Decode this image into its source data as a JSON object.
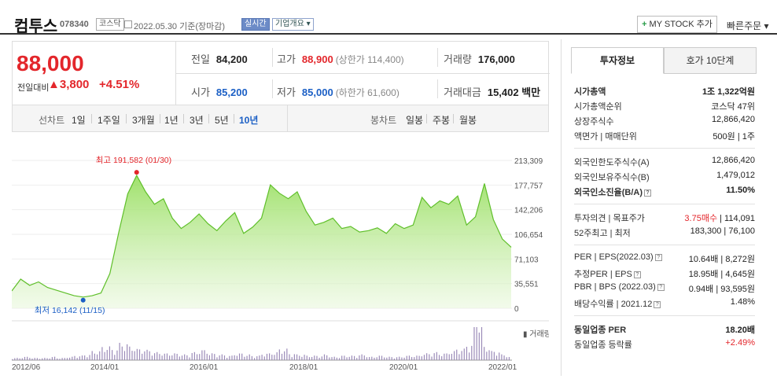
{
  "header": {
    "name": "컴투스",
    "code": "078340",
    "market": "코스닥",
    "date": "2022.05.30 기준(장마감)",
    "realtime": "실시간",
    "company_info": "기업개요 ▾",
    "mystock": "MY STOCK 추가",
    "quick_order": "빠른주문 ▾"
  },
  "price": {
    "current": "88,000",
    "prev_label": "전일대비",
    "change": "▲3,800",
    "change_pct": "+4.51%",
    "stats": {
      "prev_close_label": "전일",
      "prev_close": "84,200",
      "high_label": "고가",
      "high": "88,900",
      "upper_limit": "(상한가 114,400)",
      "volume_label": "거래량",
      "volume": "176,000",
      "open_label": "시가",
      "open": "85,200",
      "low_label": "저가",
      "low": "85,000",
      "lower_limit": "(하한가 61,600)",
      "amount_label": "거래대금",
      "amount": "15,402 백만"
    }
  },
  "tabs": {
    "line_chart": "선차트",
    "periods": [
      "1일",
      "1주일",
      "3개월",
      "1년",
      "3년",
      "5년",
      "10년"
    ],
    "selected_period": "10년",
    "candle_chart": "봉차트",
    "candles": [
      "일봉",
      "주봉",
      "월봉"
    ]
  },
  "chart_data": {
    "type": "area",
    "y_ticks": [
      "213,309",
      "177,757",
      "142,206",
      "106,654",
      "71,103",
      "35,551",
      "0"
    ],
    "x_ticks": [
      "2012/06",
      "2014/01",
      "2016/01",
      "2018/01",
      "2020/01",
      "2022/01"
    ],
    "max_label": "최고 191,582 (01/30)",
    "min_label": "최저 16,142 (11/15)",
    "volume_legend": "거래량",
    "series": [
      {
        "values": [
          25000,
          42000,
          33000,
          38000,
          30000,
          26000,
          22000,
          18000,
          16142,
          18000,
          22000,
          50000,
          110000,
          165000,
          191582,
          168000,
          150000,
          158000,
          130000,
          115000,
          124000,
          136000,
          122000,
          112000,
          126000,
          138000,
          108000,
          117000,
          130000,
          178000,
          166000,
          158000,
          168000,
          140000,
          120000,
          124000,
          130000,
          115000,
          118000,
          110000,
          112000,
          116000,
          108000,
          122000,
          115000,
          120000,
          160000,
          145000,
          155000,
          150000,
          162000,
          120000,
          132000,
          180000,
          128000,
          100000,
          88000
        ]
      }
    ],
    "volume": [
      2,
      3,
      2,
      2,
      3,
      2,
      3,
      4,
      5,
      8,
      12,
      10,
      15,
      12,
      10,
      9,
      7,
      6,
      6,
      5,
      7,
      9,
      6,
      5,
      4,
      6,
      5,
      4,
      6,
      7,
      10,
      6,
      5,
      4,
      4,
      5,
      3,
      4,
      4,
      5,
      3,
      4,
      3,
      3,
      4,
      4,
      6,
      7,
      6,
      8,
      10,
      14,
      40,
      12,
      8,
      5,
      3
    ]
  },
  "panel": {
    "tab_info": "투자정보",
    "tab_orderbook": "호가 10단계",
    "rows1": [
      {
        "l": "시가총액",
        "r": "1조 1,322억원",
        "bold": true
      },
      {
        "l": "시가총액순위",
        "r": "코스닥 47위"
      },
      {
        "l": "상장주식수",
        "r": "12,866,420"
      },
      {
        "l": "액면가 | 매매단위",
        "r": "500원 | 1주"
      }
    ],
    "rows2": [
      {
        "l": "외국인한도주식수(A)",
        "r": "12,866,420"
      },
      {
        "l": "외국인보유주식수(B)",
        "r": "1,479,012"
      },
      {
        "l": "외국인소진율(B/A)",
        "r": "11.50%",
        "bold": true
      }
    ],
    "rows3": [
      {
        "l": "투자의견 | 목표주가",
        "r_red": "3.75매수",
        "r": " | 114,091"
      },
      {
        "l": "52주최고 | 최저",
        "r": "183,300 | 76,100"
      }
    ],
    "rows4": [
      {
        "l": "PER | EPS(2022.03)",
        "r": "10.64배 | 8,272원"
      },
      {
        "l": "추정PER | EPS",
        "r": "18.95배 | 4,645원"
      },
      {
        "l": "PBR | BPS (2022.03)",
        "r": "0.94배 | 93,595원"
      },
      {
        "l": "배당수익률 | 2021.12",
        "r": "1.48%"
      }
    ],
    "rows5": [
      {
        "l": "동일업종 PER",
        "r": "18.20배",
        "bold": true
      },
      {
        "l": "동일업종 등락률",
        "r": "+2.49%",
        "red": true
      }
    ]
  }
}
